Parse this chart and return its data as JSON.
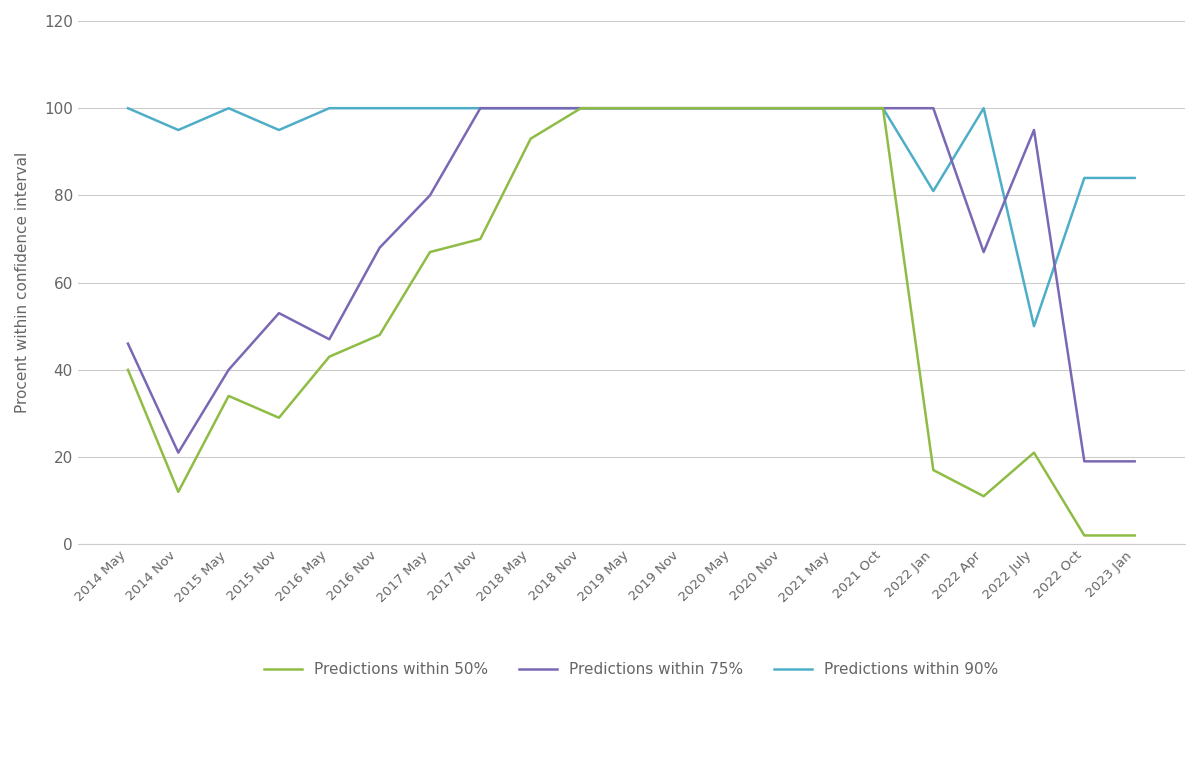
{
  "x_labels": [
    "2014 May",
    "2014 Nov",
    "2015 May",
    "2015 Nov",
    "2016 May",
    "2016 Nov",
    "2017 May",
    "2017 Nov",
    "2018 May",
    "2018 Nov",
    "2019 May",
    "2019 Nov",
    "2020 May",
    "2020 Nov",
    "2021 May",
    "2021 Oct",
    "2022 Jan",
    "2022 Apr",
    "2022 July",
    "2022 Oct",
    "2023 Jan"
  ],
  "p50": [
    40,
    12,
    34,
    29,
    43,
    48,
    67,
    70,
    93,
    100,
    100,
    100,
    100,
    100,
    100,
    100,
    17,
    11,
    21,
    2,
    2
  ],
  "p75": [
    46,
    21,
    40,
    53,
    47,
    68,
    80,
    100,
    100,
    100,
    100,
    100,
    100,
    100,
    100,
    100,
    100,
    67,
    95,
    19,
    19
  ],
  "p90": [
    100,
    95,
    100,
    95,
    100,
    100,
    100,
    100,
    100,
    100,
    100,
    100,
    100,
    100,
    100,
    100,
    81,
    100,
    50,
    84,
    84
  ],
  "color_50": "#8fbc45",
  "color_75": "#7B68B5",
  "color_90": "#4EAEC8",
  "ylabel": "Procent within confidence interval",
  "ylim": [
    0,
    120
  ],
  "yticks": [
    0,
    20,
    40,
    60,
    80,
    100,
    120
  ],
  "legend_labels": [
    "Predictions within 50%",
    "Predictions within 75%",
    "Predictions within 90%"
  ],
  "background_color": "#ffffff",
  "grid_color": "#cccccc",
  "line_width": 1.8,
  "tick_fontsize": 9.5,
  "label_fontsize": 11,
  "legend_fontsize": 11
}
